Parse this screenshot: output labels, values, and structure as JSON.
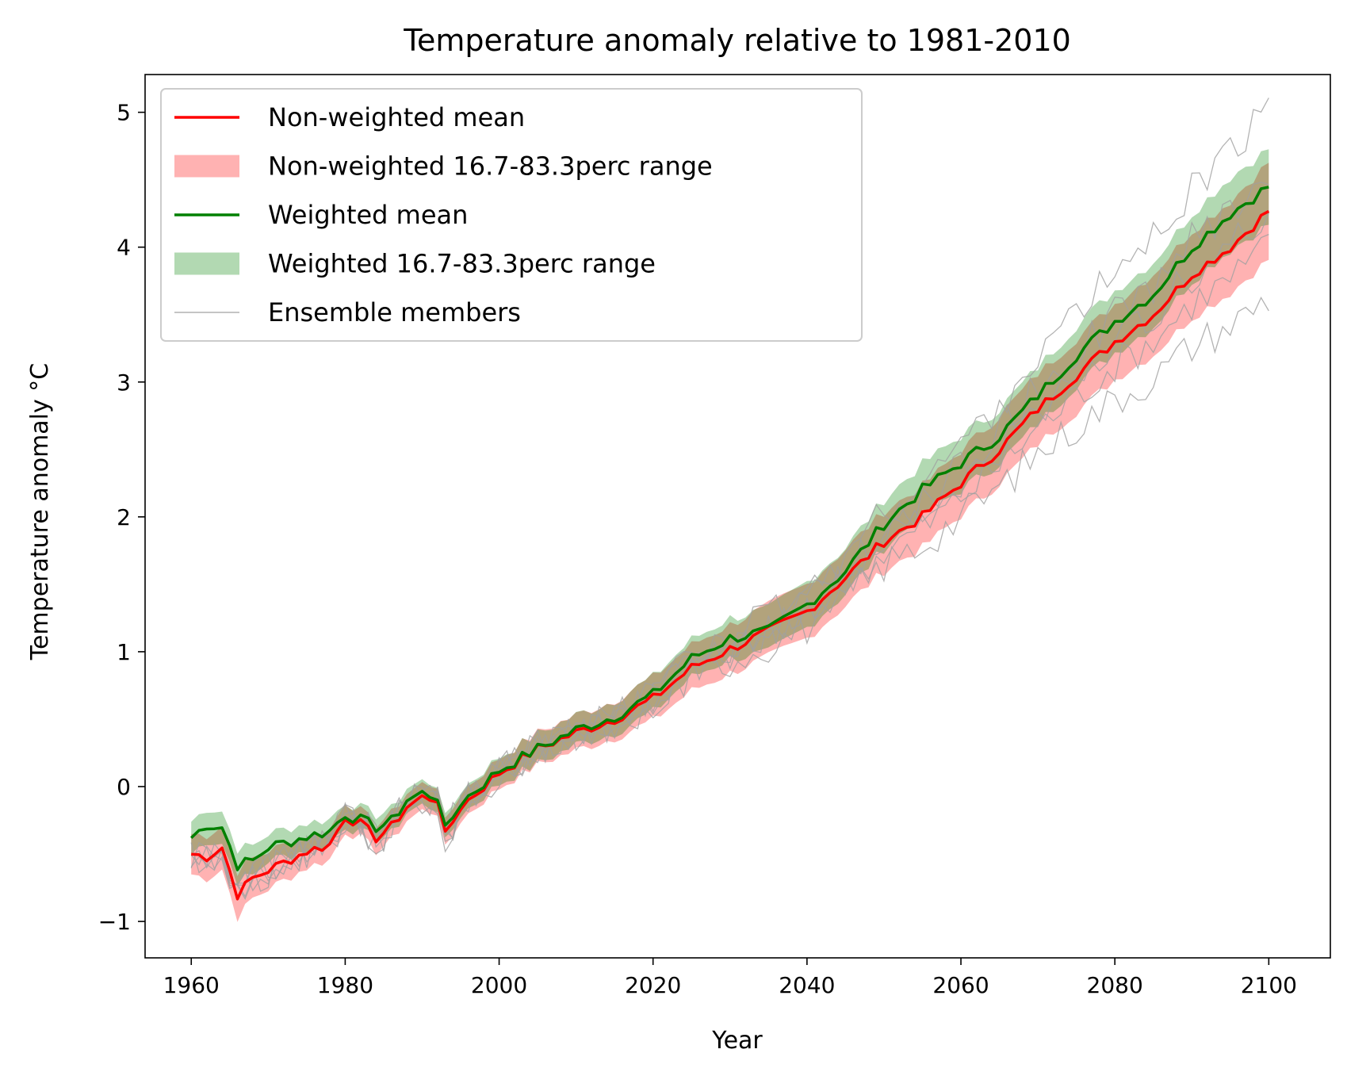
{
  "chart_data": {
    "type": "line",
    "title": "Temperature anomaly relative to 1981-2010",
    "xlabel": "Year",
    "ylabel": "Temperature anomaly °C",
    "xlim": [
      1954,
      2108
    ],
    "ylim": [
      -1.27,
      5.28
    ],
    "x_ticks": [
      1960,
      1980,
      2000,
      2020,
      2040,
      2060,
      2080,
      2100
    ],
    "y_ticks": [
      -1,
      0,
      1,
      2,
      3,
      4,
      5
    ],
    "y_tick_labels": [
      "−1",
      "0",
      "1",
      "2",
      "3",
      "4",
      "5"
    ],
    "grid": false,
    "legend_position": "top-left",
    "colors": {
      "nonweighted_mean": "#ff0000",
      "nonweighted_range": "#ff0000",
      "weighted_mean": "#008000",
      "weighted_range": "#008000",
      "ensemble": "#a0a0a0"
    },
    "legend": [
      "Non-weighted mean",
      "Non-weighted 16.7-83.3perc range",
      "Weighted mean",
      "Weighted 16.7-83.3perc range",
      "Ensemble members"
    ],
    "series_keypoints": {
      "years": [
        1960,
        1962,
        1964,
        1966,
        1968,
        1970,
        1975,
        1978,
        1980,
        1982,
        1984,
        1986,
        1988,
        1990,
        1992,
        1993,
        1995,
        2000,
        2005,
        2010,
        2015,
        2020,
        2025,
        2030,
        2035,
        2040,
        2045,
        2050,
        2055,
        2060,
        2065,
        2070,
        2075,
        2080,
        2085,
        2090,
        2095,
        2100
      ],
      "nonweighted_mean": [
        -0.5,
        -0.52,
        -0.45,
        -0.8,
        -0.68,
        -0.62,
        -0.48,
        -0.43,
        -0.22,
        -0.28,
        -0.38,
        -0.3,
        -0.15,
        -0.08,
        -0.09,
        -0.37,
        -0.15,
        0.1,
        0.28,
        0.4,
        0.5,
        0.65,
        0.88,
        1.02,
        1.15,
        1.3,
        1.55,
        1.82,
        2.0,
        2.25,
        2.5,
        2.8,
        3.05,
        3.3,
        3.5,
        3.8,
        4.0,
        4.27
      ],
      "weighted_mean": [
        -0.38,
        -0.28,
        -0.3,
        -0.58,
        -0.55,
        -0.45,
        -0.37,
        -0.33,
        -0.2,
        -0.25,
        -0.3,
        -0.26,
        -0.1,
        -0.05,
        -0.07,
        -0.33,
        -0.12,
        0.12,
        0.28,
        0.42,
        0.52,
        0.68,
        0.95,
        1.1,
        1.15,
        1.35,
        1.6,
        1.95,
        2.2,
        2.4,
        2.6,
        2.9,
        3.2,
        3.45,
        3.65,
        4.0,
        4.25,
        4.45
      ],
      "nonweighted_band_halfwidth": [
        0.15,
        0.16,
        0.16,
        0.17,
        0.15,
        0.14,
        0.12,
        0.11,
        0.11,
        0.1,
        0.1,
        0.1,
        0.1,
        0.1,
        0.1,
        0.1,
        0.1,
        0.11,
        0.12,
        0.13,
        0.14,
        0.16,
        0.17,
        0.18,
        0.19,
        0.2,
        0.21,
        0.22,
        0.23,
        0.24,
        0.25,
        0.26,
        0.27,
        0.28,
        0.3,
        0.32,
        0.34,
        0.36
      ],
      "weighted_band_halfwidth": [
        0.12,
        0.12,
        0.12,
        0.12,
        0.11,
        0.1,
        0.1,
        0.09,
        0.09,
        0.09,
        0.09,
        0.09,
        0.09,
        0.09,
        0.09,
        0.09,
        0.09,
        0.1,
        0.11,
        0.11,
        0.12,
        0.13,
        0.14,
        0.15,
        0.16,
        0.17,
        0.17,
        0.18,
        0.19,
        0.2,
        0.2,
        0.21,
        0.22,
        0.23,
        0.24,
        0.25,
        0.27,
        0.28
      ],
      "ensemble_offsets": [
        -0.25,
        -0.1,
        0.0,
        0.12,
        0.3
      ]
    }
  }
}
